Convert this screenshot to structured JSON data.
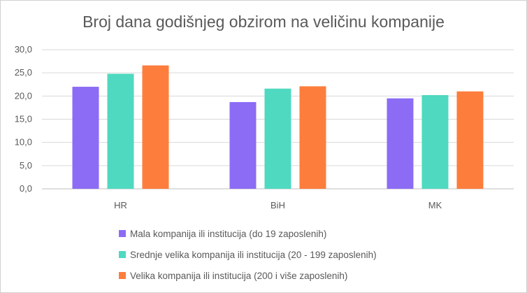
{
  "chart_data": {
    "type": "bar",
    "title": "Broj dana godišnjeg obzirom na veličinu kompanije",
    "categories": [
      "HR",
      "BiH",
      "MK"
    ],
    "series": [
      {
        "name": "Mala kompanija ili institucija (do 19 zaposlenih)",
        "color": "#8c6cf5",
        "values": [
          22.0,
          18.7,
          19.5
        ]
      },
      {
        "name": "Srednje velika kompanija ili institucija (20 - 199 zaposlenih)",
        "color": "#4fd9c0",
        "values": [
          24.8,
          21.6,
          20.2
        ]
      },
      {
        "name": "Velika kompanija ili institucija (200 i više zaposlenih)",
        "color": "#fd7d3c",
        "values": [
          26.6,
          22.1,
          21.0
        ]
      }
    ],
    "yticks": [
      "0,0",
      "5,0",
      "10,0",
      "15,0",
      "20,0",
      "25,0",
      "30,0"
    ],
    "ylim": [
      0,
      30
    ],
    "grid": true,
    "legend": "bottom"
  }
}
